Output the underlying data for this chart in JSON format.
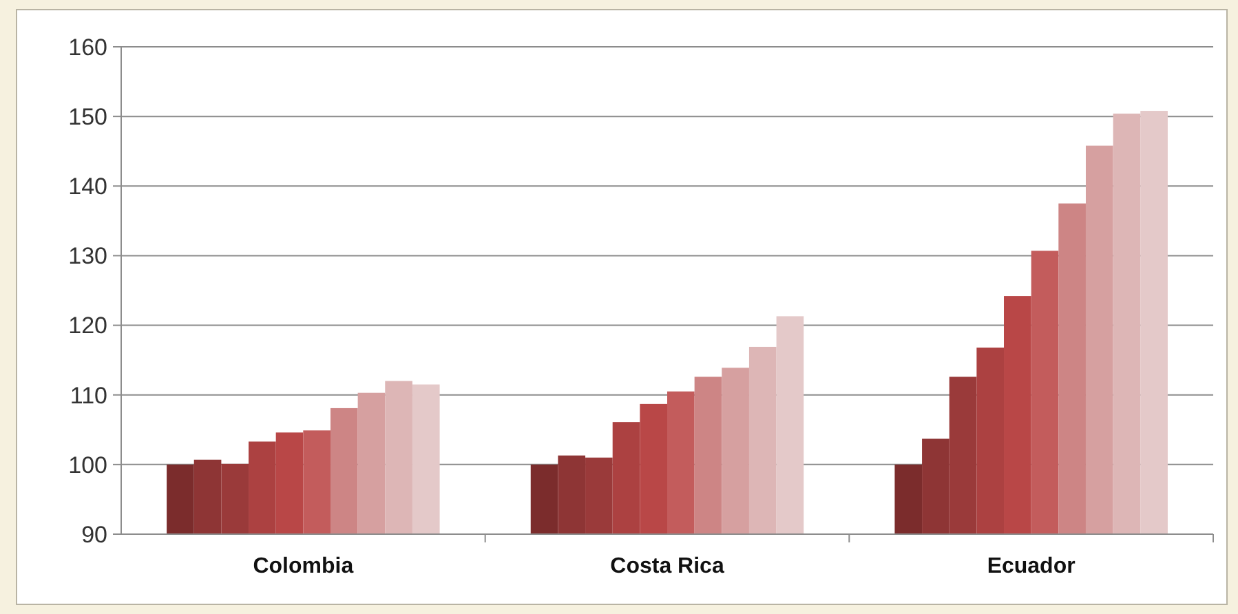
{
  "chart_data": {
    "type": "bar",
    "categories": [
      "Colombia",
      "Costa Rica",
      "Ecuador"
    ],
    "series": [
      {
        "color": "#7b2c2c",
        "values": [
          100,
          100,
          100
        ]
      },
      {
        "color": "#8e3535",
        "values": [
          100.7,
          101.3,
          103.7
        ]
      },
      {
        "color": "#9a3a3a",
        "values": [
          100.1,
          101.0,
          112.6
        ]
      },
      {
        "color": "#ac4141",
        "values": [
          103.3,
          106.1,
          116.8
        ]
      },
      {
        "color": "#b94747",
        "values": [
          104.6,
          108.7,
          124.2
        ]
      },
      {
        "color": "#c35c5c",
        "values": [
          104.9,
          110.5,
          130.7
        ]
      },
      {
        "color": "#cd8585",
        "values": [
          108.1,
          112.6,
          137.5
        ]
      },
      {
        "color": "#d6a0a0",
        "values": [
          110.3,
          113.9,
          145.8
        ]
      },
      {
        "color": "#ddb6b6",
        "values": [
          112.0,
          116.9,
          150.4
        ]
      },
      {
        "color": "#e4c9c9",
        "values": [
          111.5,
          121.3,
          150.8
        ]
      }
    ],
    "ylim": [
      90,
      160
    ],
    "yticks": [
      90,
      100,
      110,
      120,
      130,
      140,
      150,
      160
    ],
    "grid": "y"
  }
}
